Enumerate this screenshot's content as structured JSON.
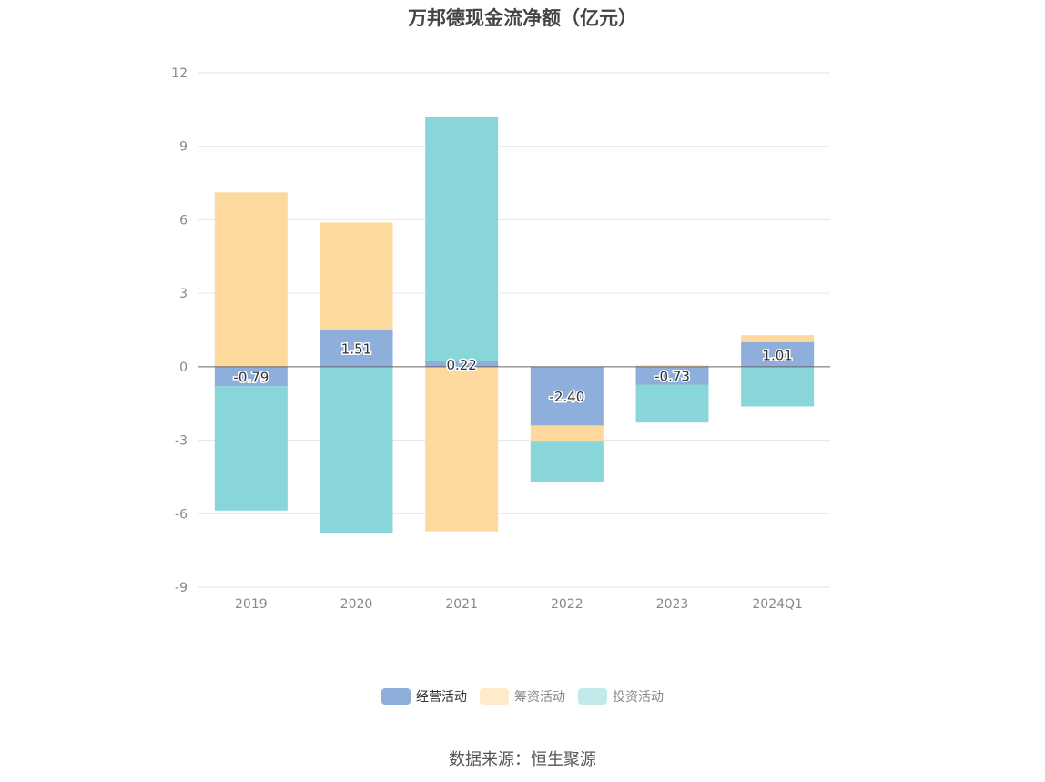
{
  "title": "万邦德现金流净额（亿元）",
  "source": "数据来源：恒生聚源",
  "colors": {
    "operating": "#8eaedc",
    "financing": "#fed99e",
    "investing": "#88d6d9",
    "grid": "#e3e6ef",
    "axis": "#666666",
    "tick_text": "#888888"
  },
  "chart_data": {
    "type": "bar",
    "stacked": true,
    "title": "万邦德现金流净额（亿元）",
    "categories": [
      "2019",
      "2020",
      "2021",
      "2022",
      "2023",
      "2024Q1"
    ],
    "ylim": [
      -9,
      12
    ],
    "yticks": [
      12,
      9,
      6,
      3,
      0,
      -3,
      -6,
      -9
    ],
    "grid": true,
    "legend_position": "bottom",
    "series": [
      {
        "name": "经营活动",
        "key": "operating",
        "values": [
          -0.79,
          1.51,
          0.22,
          -2.4,
          -0.73,
          1.01
        ],
        "labels": [
          "-0.79",
          "1.51",
          "0.22",
          "-2.40",
          "-0.73",
          "1.01"
        ]
      },
      {
        "name": "筹资活动",
        "key": "financing",
        "values": [
          7.12,
          4.38,
          -6.72,
          -0.62,
          0.05,
          0.28
        ]
      },
      {
        "name": "投资活动",
        "key": "investing",
        "values": [
          -5.08,
          -6.79,
          9.98,
          -1.68,
          -1.55,
          -1.62
        ]
      }
    ]
  }
}
